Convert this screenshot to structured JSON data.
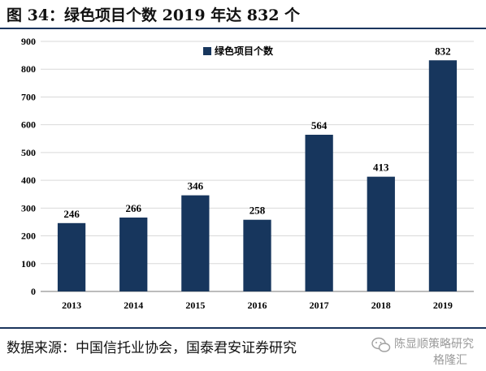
{
  "header": {
    "title": "图 34：绿色项目个数 2019 年达 832 个"
  },
  "footer": {
    "source": "数据来源：中国信托业协会，国泰君安证券研究"
  },
  "watermark": {
    "line1": "陈显顺策略研究",
    "line2": "格隆汇"
  },
  "colors": {
    "bar": "#17365d",
    "rule": "#1b355d"
  },
  "chart_data": {
    "type": "bar",
    "categories": [
      "2013",
      "2014",
      "2015",
      "2016",
      "2017",
      "2018",
      "2019"
    ],
    "series": [
      {
        "name": "绿色项目个数",
        "values": [
          246,
          266,
          346,
          258,
          564,
          413,
          832
        ]
      }
    ],
    "data_labels": [
      "246",
      "266",
      "346",
      "258",
      "564",
      "413",
      "832"
    ],
    "ylim": [
      0,
      900
    ],
    "yticks": [
      0,
      100,
      200,
      300,
      400,
      500,
      600,
      700,
      800,
      900
    ],
    "grid": true,
    "legend_position": "top-center"
  }
}
